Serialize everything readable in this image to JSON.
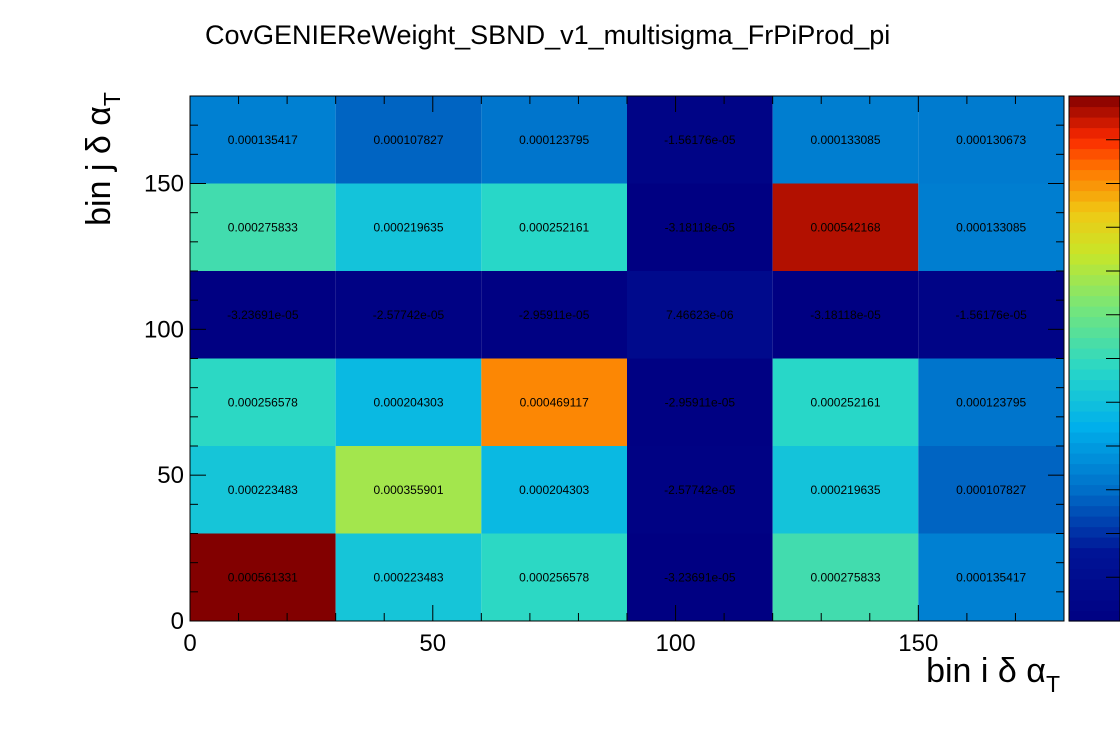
{
  "chart_data": {
    "type": "heatmap",
    "title": "CovGENIEReWeight_SBND_v1_multisigma_FrPiProd_pi",
    "xlabel": {
      "main": "bin i δ α",
      "sub": "T"
    },
    "ylabel": {
      "main": "bin j δ α",
      "sub": "T"
    },
    "xlim": [
      0,
      180
    ],
    "ylim": [
      0,
      180
    ],
    "x_ticks": [
      "0",
      "50",
      "100",
      "150"
    ],
    "y_ticks": [
      "0",
      "50",
      "100",
      "150"
    ],
    "x_tick_values": [
      0,
      50,
      100,
      150
    ],
    "y_tick_values": [
      0,
      50,
      100,
      150
    ],
    "bin_edges": [
      0,
      30,
      60,
      90,
      120,
      150,
      180
    ],
    "zlim": [
      -3.236e-05,
      0.000561331
    ],
    "colorbar": true,
    "cells": [
      [
        "0.000561331",
        "0.000223483",
        "0.000256578",
        "-3.23691e-05",
        "0.000275833",
        "0.000135417"
      ],
      [
        "0.000223483",
        "0.000355901",
        "0.000204303",
        "-2.57742e-05",
        "0.000219635",
        "0.000107827"
      ],
      [
        "0.000256578",
        "0.000204303",
        "0.000469117",
        "-2.95911e-05",
        "0.000252161",
        "0.000123795"
      ],
      [
        "-3.23691e-05",
        "-2.57742e-05",
        "-2.95911e-05",
        "7.46623e-06",
        "-3.18118e-05",
        "-1.56176e-05"
      ],
      [
        "0.000275833",
        "0.000219635",
        "0.000252161",
        "-3.18118e-05",
        "0.000542168",
        "0.000133085"
      ],
      [
        "0.000135417",
        "0.000107827",
        "0.000123795",
        "-1.56176e-05",
        "0.000133085",
        "0.000130673"
      ]
    ]
  }
}
